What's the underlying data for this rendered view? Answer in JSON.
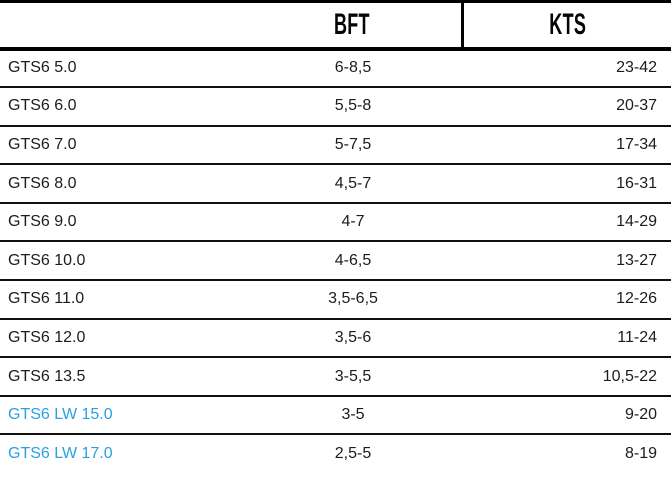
{
  "table": {
    "columns": [
      {
        "label": ""
      },
      {
        "label": "BFT"
      },
      {
        "label": "KTS"
      }
    ],
    "rows": [
      {
        "model": "GTS6 5.0",
        "bft": "6-8,5",
        "kts": "23-42",
        "highlight": false
      },
      {
        "model": "GTS6 6.0",
        "bft": "5,5-8",
        "kts": "20-37",
        "highlight": false
      },
      {
        "model": "GTS6 7.0",
        "bft": "5-7,5",
        "kts": "17-34",
        "highlight": false
      },
      {
        "model": "GTS6 8.0",
        "bft": "4,5-7",
        "kts": "16-31",
        "highlight": false
      },
      {
        "model": "GTS6 9.0",
        "bft": "4-7",
        "kts": "14-29",
        "highlight": false
      },
      {
        "model": "GTS6 10.0",
        "bft": "4-6,5",
        "kts": "13-27",
        "highlight": false
      },
      {
        "model": "GTS6 11.0",
        "bft": "3,5-6,5",
        "kts": "12-26",
        "highlight": false
      },
      {
        "model": "GTS6 12.0",
        "bft": "3,5-6",
        "kts": "11-24",
        "highlight": false
      },
      {
        "model": "GTS6 13.5",
        "bft": "3-5,5",
        "kts": "10,5-22",
        "highlight": false
      },
      {
        "model": "GTS6 LW 15.0",
        "bft": "3-5",
        "kts": "9-20",
        "highlight": true
      },
      {
        "model": "GTS6 LW 17.0",
        "bft": "2,5-5",
        "kts": "8-19",
        "highlight": true
      }
    ],
    "colors": {
      "highlight_text": "#2AA0E4",
      "text": "#1c1c1c",
      "border": "#000000"
    }
  },
  "chart_data": {
    "type": "table",
    "title": "",
    "columns": [
      "",
      "BFT",
      "KTS"
    ],
    "rows": [
      [
        "GTS6 5.0",
        "6-8,5",
        "23-42"
      ],
      [
        "GTS6 6.0",
        "5,5-8",
        "20-37"
      ],
      [
        "GTS6 7.0",
        "5-7,5",
        "17-34"
      ],
      [
        "GTS6 8.0",
        "4,5-7",
        "16-31"
      ],
      [
        "GTS6 9.0",
        "4-7",
        "14-29"
      ],
      [
        "GTS6 10.0",
        "4-6,5",
        "13-27"
      ],
      [
        "GTS6 11.0",
        "3,5-6,5",
        "12-26"
      ],
      [
        "GTS6 12.0",
        "3,5-6",
        "11-24"
      ],
      [
        "GTS6 13.5",
        "3-5,5",
        "10,5-22"
      ],
      [
        "GTS6 LW 15.0",
        "3-5",
        "9-20"
      ],
      [
        "GTS6 LW 17.0",
        "2,5-5",
        "8-19"
      ]
    ],
    "notes": "Model names GTS6 LW 15.0 and GTS6 LW 17.0 rendered in blue (#2AA0E4); BFT values centered; KTS values right-aligned"
  }
}
